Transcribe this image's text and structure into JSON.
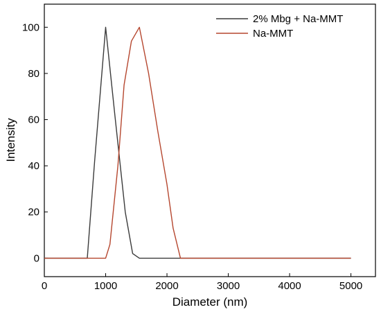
{
  "chart_data": {
    "type": "line",
    "title": "",
    "xlabel": "Diameter (nm)",
    "ylabel": "Intensity",
    "xlim": [
      0,
      5400
    ],
    "ylim": [
      -8,
      110
    ],
    "xticks": [
      0,
      1000,
      2000,
      3000,
      4000,
      5000
    ],
    "yticks": [
      0,
      20,
      40,
      60,
      80,
      100
    ],
    "grid": false,
    "legend_position": "top-right",
    "series": [
      {
        "name": "2% Mbg + Na-MMT",
        "color": "#3a3a3a",
        "x": [
          0,
          700,
          820,
          1000,
          1150,
          1320,
          1440,
          1550,
          2000,
          3000,
          4000,
          5000
        ],
        "y": [
          0,
          0,
          42,
          100,
          62,
          20,
          2,
          0,
          0,
          0,
          0,
          0
        ]
      },
      {
        "name": "Na-MMT",
        "color": "#b5462e",
        "x": [
          0,
          1000,
          1070,
          1200,
          1300,
          1420,
          1550,
          1700,
          1850,
          2000,
          2100,
          2220,
          3000,
          4000,
          5000
        ],
        "y": [
          0,
          0,
          6,
          40,
          75,
          94,
          100,
          80,
          55,
          32,
          13,
          0,
          0,
          0,
          0
        ]
      }
    ]
  }
}
